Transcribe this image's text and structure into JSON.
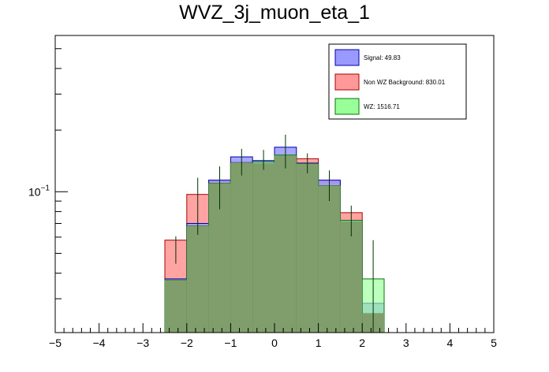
{
  "chart_data": {
    "type": "bar",
    "title": "WVZ_3j_muon_eta_1",
    "xlabel": "",
    "ylabel": "",
    "xlim": [
      -5,
      5
    ],
    "yscale": "log",
    "ylim": [
      0.0205,
      0.58
    ],
    "x_ticks": [
      -5,
      -4,
      -3,
      -2,
      -1,
      0,
      1,
      2,
      3,
      4,
      5
    ],
    "x_tick_labels": [
      "−5",
      "−4",
      "−3",
      "−2",
      "−1",
      "0",
      "1",
      "2",
      "3",
      "4",
      "5"
    ],
    "y_tick_label": {
      "base": "10",
      "exponent": "−1",
      "value": 0.1
    },
    "bin_edges": [
      -2.5,
      -2.0,
      -1.5,
      -1.0,
      -0.5,
      0.0,
      0.5,
      1.0,
      1.5,
      2.0,
      2.5
    ],
    "series": [
      {
        "name": "Signal",
        "legend_label": "Signal: 49.83",
        "color": "#9999ff",
        "edge": "#0000aa",
        "values": [
          0.0375,
          0.07,
          0.114,
          0.148,
          0.142,
          0.165,
          0.138,
          0.114,
          0.0715,
          0.0285
        ]
      },
      {
        "name": "Non WZ Background",
        "legend_label": "Non WZ Background: 830.01",
        "color": "#ff9999",
        "edge": "#aa0000",
        "values": [
          0.058,
          0.097,
          0.112,
          0.14,
          0.138,
          0.15,
          0.145,
          0.112,
          0.079,
          0.0255
        ]
      },
      {
        "name": "WZ",
        "legend_label": "WZ: 1516.71",
        "color": "#99ff99",
        "edge": "#007700",
        "values": [
          0.037,
          0.068,
          0.11,
          0.138,
          0.14,
          0.151,
          0.137,
          0.107,
          0.0725,
          0.0375
        ]
      }
    ],
    "error_bars": {
      "color": "#003300",
      "centers": [
        -2.25,
        -1.75,
        -1.25,
        -0.75,
        -0.25,
        0.25,
        0.75,
        1.25,
        1.75,
        2.25
      ],
      "low": [
        0.0445,
        0.0615,
        0.082,
        0.12,
        0.128,
        0.13,
        0.123,
        0.09,
        0.0605,
        0.0205
      ],
      "high": [
        0.0605,
        0.117,
        0.133,
        0.162,
        0.16,
        0.19,
        0.154,
        0.127,
        0.0855,
        0.058
      ]
    },
    "legend": {
      "position": "top-right"
    }
  }
}
